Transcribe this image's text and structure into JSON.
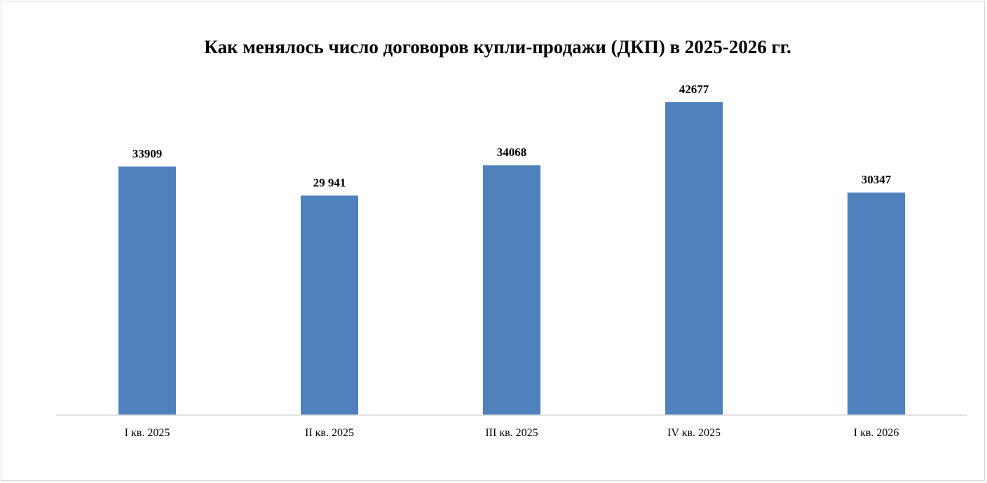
{
  "chart_data": {
    "type": "bar",
    "title": "Как менялось число договоров  купли-продажи (ДКП) в 2025-2026 гг.",
    "xlabel": "",
    "ylabel": "",
    "categories": [
      "I кв. 2025",
      "II кв. 2025",
      "III кв. 2025",
      "IV кв. 2025",
      "I кв. 2026"
    ],
    "values": [
      33909,
      29941,
      34068,
      42677,
      30347
    ],
    "data_labels": [
      "33909",
      "29 941",
      "34068",
      "42677",
      "30347"
    ],
    "ylim": [
      0,
      42677
    ],
    "grid": false,
    "legend": "none",
    "colors": {
      "bar": "#4f81bd",
      "axis": "#d9d9d9",
      "text": "#000000"
    }
  }
}
